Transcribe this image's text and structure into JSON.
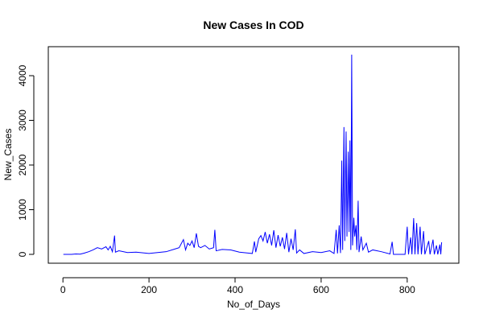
{
  "chart_data": {
    "type": "line",
    "title": "New Cases In COD",
    "x_label": "No_of_Days",
    "y_label": "New_Cases",
    "x": [
      1,
      20,
      30,
      40,
      50,
      60,
      70,
      80,
      90,
      100,
      105,
      110,
      115,
      120,
      122,
      130,
      150,
      170,
      200,
      220,
      240,
      260,
      270,
      280,
      285,
      290,
      295,
      300,
      305,
      310,
      315,
      320,
      330,
      340,
      350,
      353,
      356,
      370,
      390,
      410,
      430,
      440,
      445,
      448,
      455,
      460,
      465,
      470,
      475,
      480,
      485,
      490,
      495,
      500,
      505,
      510,
      515,
      520,
      525,
      530,
      535,
      540,
      543,
      550,
      560,
      580,
      600,
      620,
      630,
      635,
      638,
      642,
      645,
      648,
      650,
      653,
      655,
      658,
      660,
      663,
      665,
      667,
      669,
      671,
      673,
      676,
      678,
      681,
      683,
      686,
      688,
      693,
      697,
      705,
      710,
      720,
      740,
      760,
      765,
      768,
      795,
      800,
      803,
      808,
      811,
      815,
      818,
      822,
      825,
      830,
      833,
      838,
      841,
      850,
      853,
      860,
      863,
      868,
      871,
      876,
      878,
      880
    ],
    "series": [
      {
        "name": "New_Cases",
        "color": "#0000ff",
        "values": [
          0,
          0,
          10,
          5,
          30,
          60,
          100,
          150,
          120,
          170,
          100,
          180,
          60,
          420,
          50,
          80,
          40,
          50,
          20,
          40,
          60,
          120,
          150,
          330,
          100,
          250,
          200,
          300,
          150,
          470,
          180,
          150,
          200,
          120,
          150,
          550,
          80,
          110,
          100,
          50,
          30,
          20,
          290,
          50,
          350,
          420,
          300,
          500,
          250,
          450,
          200,
          540,
          150,
          430,
          180,
          380,
          120,
          480,
          50,
          350,
          100,
          560,
          30,
          100,
          20,
          60,
          40,
          80,
          20,
          550,
          20,
          650,
          30,
          2100,
          100,
          2850,
          300,
          2750,
          400,
          2300,
          500,
          2550,
          100,
          4470,
          200,
          820,
          400,
          650,
          100,
          1200,
          50,
          400,
          100,
          250,
          50,
          100,
          60,
          10,
          280,
          0,
          0,
          620,
          0,
          380,
          0,
          810,
          0,
          700,
          0,
          620,
          0,
          520,
          0,
          300,
          0,
          330,
          0,
          200,
          0,
          220,
          0,
          270
        ]
      }
    ],
    "xlim": [
      -34,
      920
    ],
    "ylim": [
      -198,
      4649
    ],
    "xticks": [
      0,
      200,
      400,
      600,
      800
    ],
    "yticks": [
      0,
      1000,
      2000,
      3000,
      4000
    ]
  }
}
